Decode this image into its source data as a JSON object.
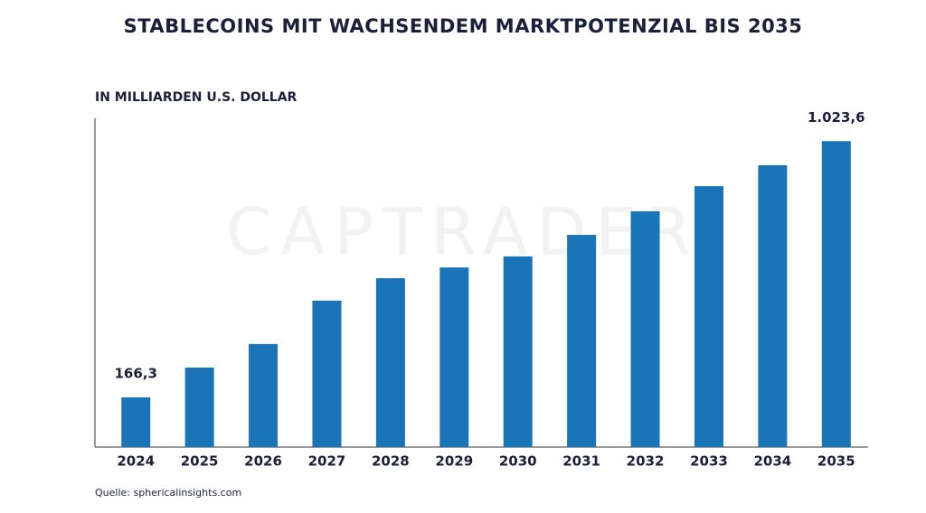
{
  "chart_data": {
    "type": "bar",
    "title": "STABLECOINS MIT WACHSENDEM MARKTPOTENZIAL BIS 2035",
    "subtitle": "IN MILLIARDEN U.S. DOLLAR",
    "source": "Quelle: sphericalinsights.com",
    "watermark": "CAPTRADER",
    "categories": [
      "2024",
      "2025",
      "2026",
      "2027",
      "2028",
      "2029",
      "2030",
      "2031",
      "2032",
      "2033",
      "2034",
      "2035"
    ],
    "values": [
      166.3,
      266,
      345,
      490,
      565,
      601,
      638,
      710,
      789,
      873,
      943,
      1023.6
    ],
    "value_labels": [
      "166,3",
      null,
      null,
      null,
      null,
      null,
      null,
      null,
      null,
      null,
      null,
      "1.023,6"
    ],
    "color": "#1a74b8",
    "ylim": [
      0,
      1100
    ]
  }
}
